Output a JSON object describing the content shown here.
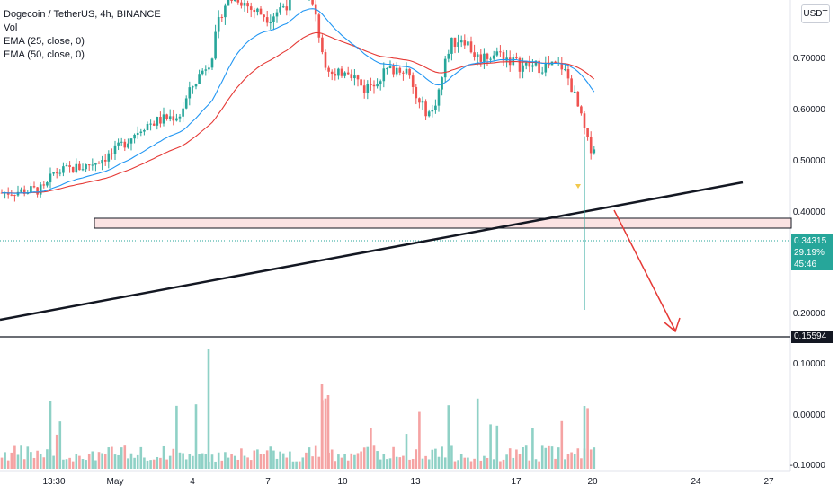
{
  "legend": {
    "title": "Dogecoin / TetherUS, 4h, BINANCE",
    "vol": "Vol",
    "ema25": "EMA (25, close, 0)",
    "ema50": "EMA (50, close, 0)"
  },
  "currency_button": "USDT",
  "price_axis": [
    "0.70000",
    "0.60000",
    "0.50000",
    "0.40000",
    "0.20000"
  ],
  "volume_axis": [
    "0.10000",
    "0.00000",
    "-0.10000"
  ],
  "date_axis": [
    "13:30",
    "May",
    "4",
    "7",
    "10",
    "13",
    "17",
    "20",
    "24",
    "27"
  ],
  "last_price": {
    "value": "0.34315",
    "change": "29.19%",
    "countdown": "45:46"
  },
  "target_price": "0.15594",
  "colors": {
    "up": "#26a69a",
    "down": "#ef5350",
    "up_vol": "#8fd1c6",
    "down_vol": "#f5a3a3",
    "ema25": "#2196f3",
    "ema50": "#e53935",
    "zone_fill": "#fbe3e3",
    "arrow": "#e53935"
  }
}
